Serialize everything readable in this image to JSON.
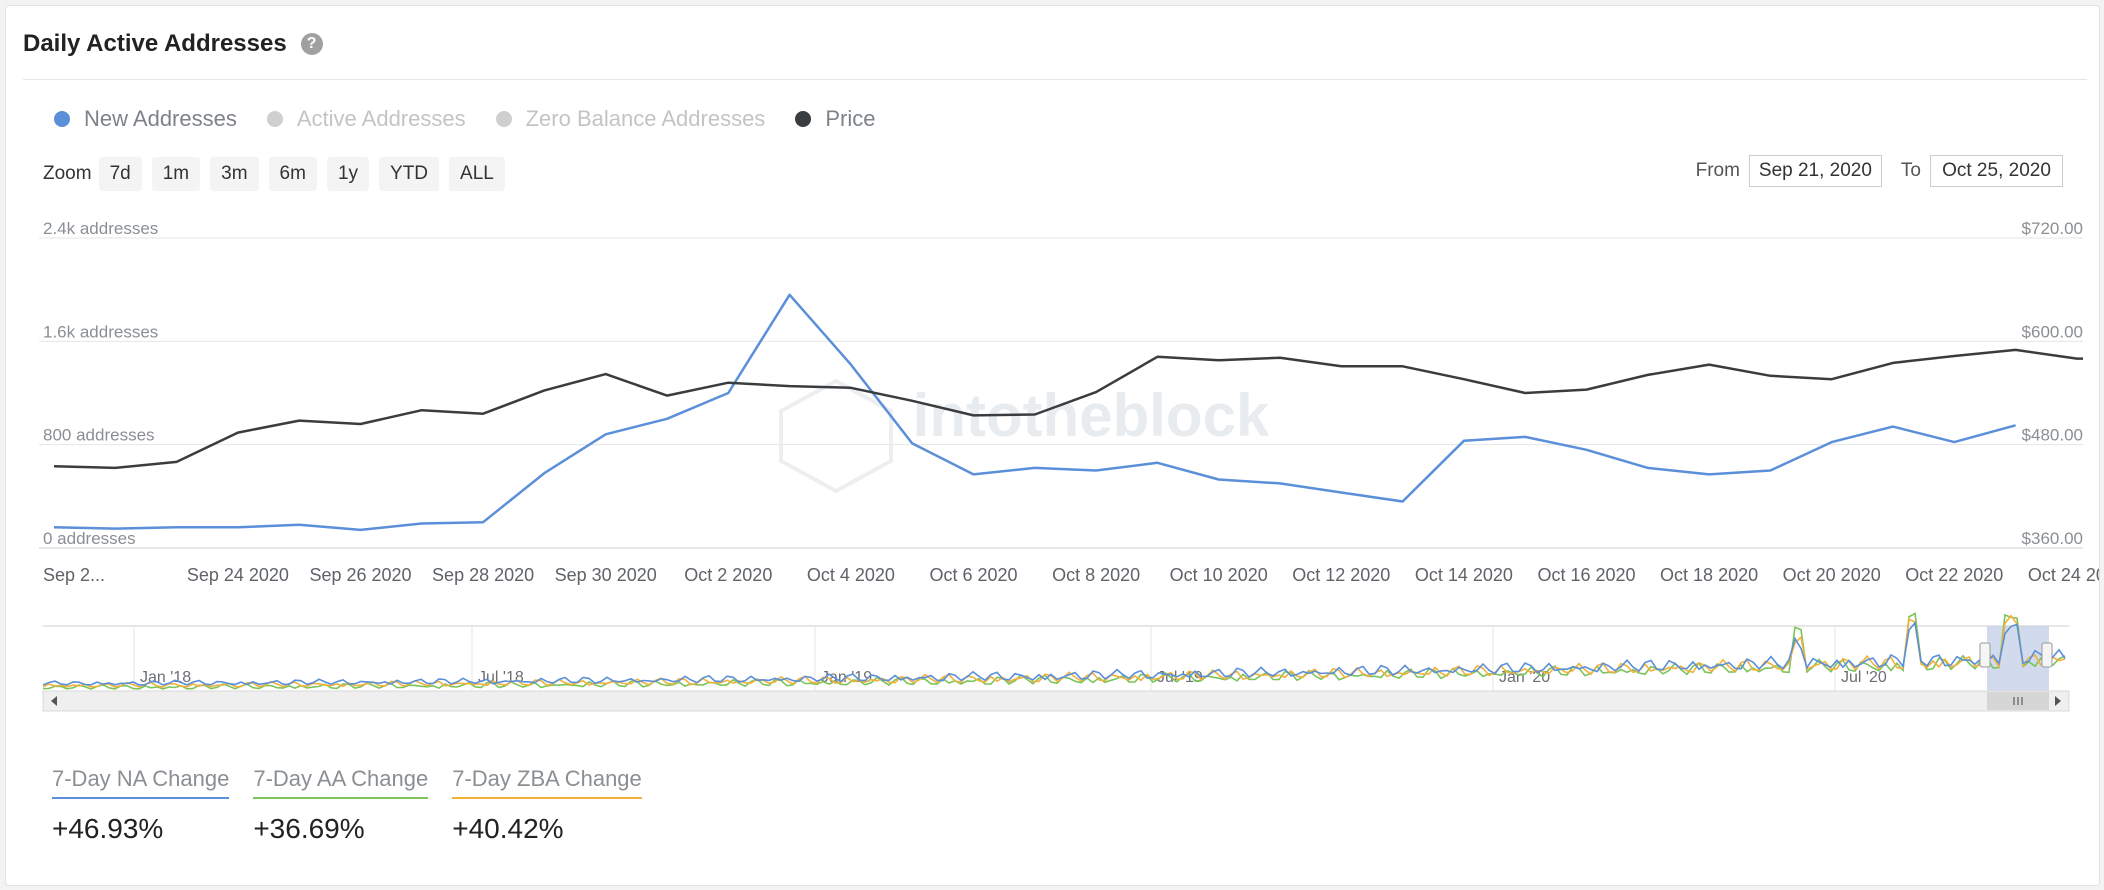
{
  "header": {
    "title": "Daily Active Addresses",
    "help_icon": "question-circle-icon"
  },
  "legend": [
    {
      "label": "New Addresses",
      "color": "#5b8fd9",
      "text_color": "#7d8389",
      "active": true
    },
    {
      "label": "Active Addresses",
      "color": "#cfcfcf",
      "text_color": "#c4c4c4",
      "active": false
    },
    {
      "label": "Zero Balance Addresses",
      "color": "#cfcfcf",
      "text_color": "#c4c4c4",
      "active": false
    },
    {
      "label": "Price",
      "color": "#3a3d40",
      "text_color": "#7d8389",
      "active": true
    }
  ],
  "zoom": {
    "label": "Zoom",
    "buttons": [
      "7d",
      "1m",
      "3m",
      "6m",
      "1y",
      "YTD",
      "ALL"
    ]
  },
  "range": {
    "from_label": "From",
    "from_value": "Sep 21, 2020",
    "to_label": "To",
    "to_value": "Oct 25, 2020"
  },
  "watermark": "intotheblock",
  "chart_data": {
    "type": "line",
    "x": [
      "Sep 21 2020",
      "Sep 22 2020",
      "Sep 23 2020",
      "Sep 24 2020",
      "Sep 25 2020",
      "Sep 26 2020",
      "Sep 27 2020",
      "Sep 28 2020",
      "Sep 29 2020",
      "Sep 30 2020",
      "Oct 1 2020",
      "Oct 2 2020",
      "Oct 3 2020",
      "Oct 4 2020",
      "Oct 5 2020",
      "Oct 6 2020",
      "Oct 7 2020",
      "Oct 8 2020",
      "Oct 9 2020",
      "Oct 10 2020",
      "Oct 11 2020",
      "Oct 12 2020",
      "Oct 13 2020",
      "Oct 14 2020",
      "Oct 15 2020",
      "Oct 16 2020",
      "Oct 17 2020",
      "Oct 18 2020",
      "Oct 19 2020",
      "Oct 20 2020",
      "Oct 21 2020",
      "Oct 22 2020",
      "Oct 23 2020",
      "Oct 24 2020",
      "Oct 25 2020"
    ],
    "x_tick_labels": [
      "Sep 2...",
      "Sep 24 2020",
      "Sep 26 2020",
      "Sep 28 2020",
      "Sep 30 2020",
      "Oct 2 2020",
      "Oct 4 2020",
      "Oct 6 2020",
      "Oct 8 2020",
      "Oct 10 2020",
      "Oct 12 2020",
      "Oct 14 2020",
      "Oct 16 2020",
      "Oct 18 2020",
      "Oct 20 2020",
      "Oct 22 2020",
      "Oct 24 2020"
    ],
    "y_left": {
      "ticks": [
        "0 addresses",
        "800 addresses",
        "1.6k addresses",
        "2.4k addresses"
      ],
      "lim": [
        0,
        2400
      ]
    },
    "y_right": {
      "ticks": [
        "$360.00",
        "$480.00",
        "$600.00",
        "$720.00"
      ],
      "lim": [
        360,
        720
      ]
    },
    "series": [
      {
        "name": "New Addresses",
        "axis": "left",
        "color": "#5b8fd9",
        "values": [
          160,
          150,
          160,
          160,
          180,
          140,
          190,
          200,
          580,
          880,
          1000,
          1200,
          1960,
          1420,
          810,
          570,
          620,
          600,
          660,
          530,
          500,
          430,
          360,
          830,
          860,
          760,
          620,
          570,
          600,
          820,
          940,
          820,
          950,
          null,
          null
        ]
      },
      {
        "name": "Price",
        "axis": "right",
        "color": "#3a3d40",
        "values": [
          455,
          453,
          460,
          494,
          508,
          504,
          520,
          516,
          543,
          562,
          537,
          552,
          548,
          546,
          531,
          514,
          515,
          541,
          582,
          578,
          581,
          571,
          571,
          556,
          540,
          544,
          561,
          573,
          560,
          556,
          575,
          583,
          590,
          580,
          null
        ]
      }
    ],
    "navigator": {
      "labels": [
        "Jan '18",
        "Jul '18",
        "Jan '19",
        "Jul '19",
        "Jan '20",
        "Jul '20"
      ],
      "series": [
        {
          "name": "Active Addresses",
          "color": "#7cc45a"
        },
        {
          "name": "Zero Balance Addresses",
          "color": "#f2b13b"
        },
        {
          "name": "New Addresses",
          "color": "#5b8fd9"
        }
      ]
    }
  },
  "metrics": [
    {
      "label": "7-Day NA Change",
      "value": "+46.93%",
      "underline": "#5b8fd9"
    },
    {
      "label": "7-Day AA Change",
      "value": "+36.69%",
      "underline": "#7cc45a"
    },
    {
      "label": "7-Day ZBA Change",
      "value": "+40.42%",
      "underline": "#f2b13b"
    }
  ]
}
